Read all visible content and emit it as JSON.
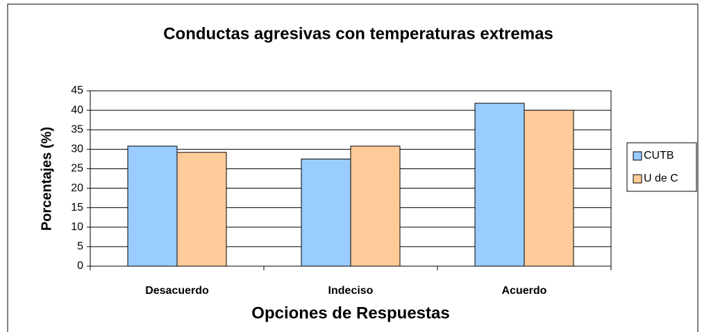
{
  "chart_data": {
    "type": "bar",
    "title": "Conductas agresivas con temperaturas extremas",
    "x_label": "Opciones de Respuestas",
    "y_label": "Porcentajes (%)",
    "categories": [
      "Desacuerdo",
      "Indeciso",
      "Acuerdo"
    ],
    "series": [
      {
        "name": "CUTB",
        "color": "#99ccff",
        "values": [
          30.8,
          27.5,
          41.8
        ]
      },
      {
        "name": "U de C",
        "color": "#ffcc99",
        "values": [
          29.2,
          30.8,
          40
        ]
      }
    ],
    "ylim": [
      0,
      45
    ],
    "yticks": [
      0,
      5,
      10,
      15,
      20,
      25,
      30,
      35,
      40,
      45
    ],
    "grid": true,
    "legend": "right"
  }
}
